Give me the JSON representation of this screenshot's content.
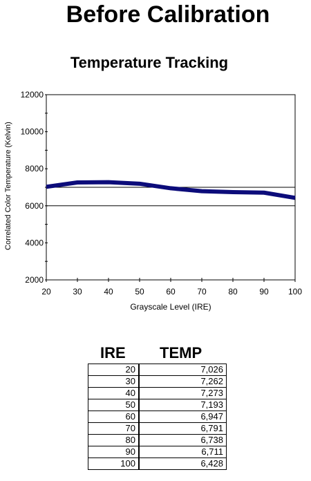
{
  "page": {
    "title": "Before Calibration",
    "subtitle": "Temperature Tracking"
  },
  "chart_data": {
    "type": "line",
    "xlabel": "Grayscale Level (IRE)",
    "ylabel": "Correlated Color Temperature (Kelvin)",
    "xlim": [
      20,
      100
    ],
    "ylim": [
      2000,
      12000
    ],
    "x_ticks": [
      "20",
      "30",
      "40",
      "50",
      "60",
      "70",
      "80",
      "90",
      "100"
    ],
    "y_ticks": [
      "2000",
      "4000",
      "6000",
      "8000",
      "10000",
      "12000"
    ],
    "reference_lines": [
      6000,
      7000
    ],
    "series": [
      {
        "x": [
          20,
          30,
          40,
          50,
          60,
          70,
          80,
          90,
          100
        ],
        "values": [
          7026,
          7262,
          7273,
          7193,
          6947,
          6791,
          6738,
          6711,
          6428
        ],
        "color": "#0c0c7a"
      }
    ],
    "grid": false
  },
  "table": {
    "headers": [
      "IRE",
      "TEMP"
    ],
    "rows": [
      [
        "20",
        "7,026"
      ],
      [
        "30",
        "7,262"
      ],
      [
        "40",
        "7,273"
      ],
      [
        "50",
        "7,193"
      ],
      [
        "60",
        "6,947"
      ],
      [
        "70",
        "6,791"
      ],
      [
        "80",
        "6,738"
      ],
      [
        "90",
        "6,711"
      ],
      [
        "100",
        "6,428"
      ]
    ]
  }
}
